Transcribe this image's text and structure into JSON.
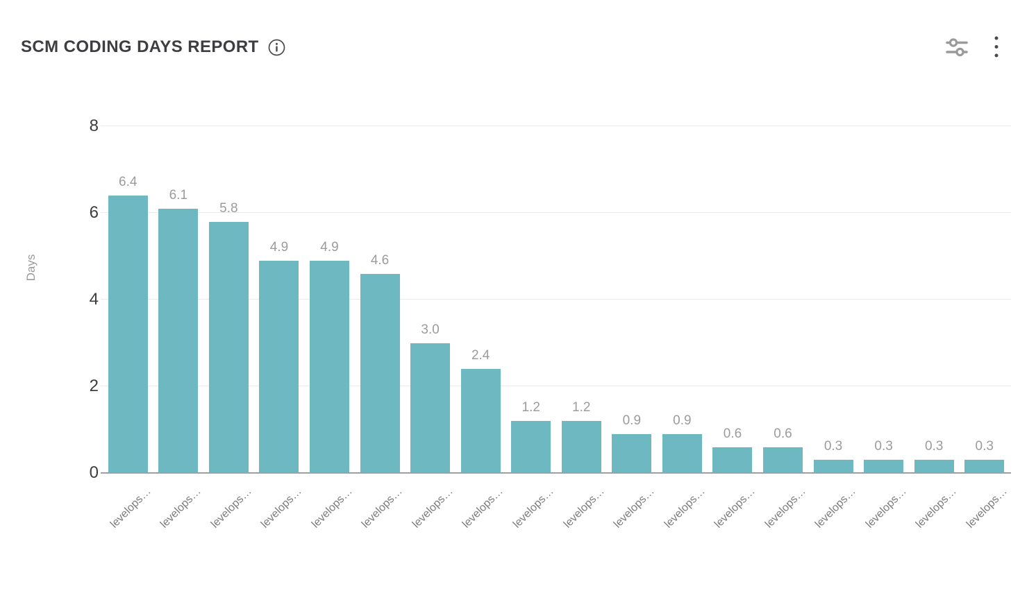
{
  "header": {
    "title": "SCM CODING DAYS REPORT",
    "info_icon": "info-circle-icon",
    "actions": [
      {
        "name": "filter-settings",
        "icon": "sliders-icon"
      },
      {
        "name": "more-options",
        "icon": "kebab-menu-icon"
      }
    ]
  },
  "colors": {
    "bar": "#6db8c1",
    "gridline": "#eaeaea",
    "axis_line": "#9da0a5",
    "y_tick_text": "#3d3d3d",
    "value_label_text": "#9b9b9b",
    "x_label_text": "#7c7c7c",
    "axis_title_text": "#9a9a9a",
    "title_text": "#3e3e42",
    "icon_gray": "#9a9a9a",
    "icon_dark": "#4a4a4a",
    "background": "#ffffff"
  },
  "chart_data": {
    "type": "bar",
    "title": "SCM CODING DAYS REPORT",
    "xlabel": "",
    "ylabel": "Days",
    "ylim": [
      0,
      8
    ],
    "y_ticks": [
      0,
      2,
      4,
      6,
      8
    ],
    "grid": true,
    "legend": false,
    "bar_color": "#6db8c1",
    "categories": [
      "levelops…",
      "levelops…",
      "levelops…",
      "levelops…",
      "levelops…",
      "levelops…",
      "levelops…",
      "levelops…",
      "levelops…",
      "levelops…",
      "levelops…",
      "levelops…",
      "levelops…",
      "levelops…",
      "levelops…",
      "levelops…",
      "levelops…",
      "levelops…"
    ],
    "values": [
      6.4,
      6.1,
      5.8,
      4.9,
      4.9,
      4.6,
      3.0,
      2.4,
      1.2,
      1.2,
      0.9,
      0.9,
      0.6,
      0.6,
      0.3,
      0.3,
      0.3,
      0.3
    ],
    "value_labels": [
      "6.4",
      "6.1",
      "5.8",
      "4.9",
      "4.9",
      "4.6",
      "3.0",
      "2.4",
      "1.2",
      "1.2",
      "0.9",
      "0.9",
      "0.6",
      "0.6",
      "0.3",
      "0.3",
      "0.3",
      "0.3"
    ]
  }
}
